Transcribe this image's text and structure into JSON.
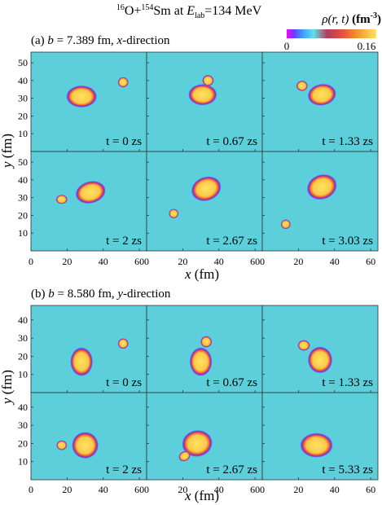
{
  "title": {
    "pre": "16",
    "o": "O+",
    "sm_pre": "154",
    "sm": "Sm at ",
    "e": "E",
    "lab": "lab",
    "rest": "=134 MeV"
  },
  "colorbar": {
    "label_rho": "ρ(r, t)",
    "label_unit": "(fm",
    "label_exp": "-3",
    "label_close": ")",
    "min_label": "0",
    "max_label": "0.16",
    "min": 0,
    "max": 0.16,
    "stops": [
      "#ff00ff",
      "#6a3cff",
      "#3aa0ff",
      "#5fe0e8",
      "#c23a6e",
      "#e8503a",
      "#f39a2e",
      "#ffe45e"
    ]
  },
  "background_color": "#5ccfdb",
  "panel_sets": [
    {
      "id": "a",
      "label": "(a) b = 7.389 fm, x-direction",
      "label_parts": {
        "pre": "(a) ",
        "b": "b",
        "mid": " = 7.389 fm, ",
        "dir": "x",
        "post": "-direction"
      },
      "xlabel": "x (fm)",
      "ylabel": "y (fm)",
      "xlim": [
        0,
        64
      ],
      "ylim": [
        0,
        56
      ],
      "xticks": [
        0,
        20,
        40,
        60
      ],
      "yticks": [
        10,
        20,
        30,
        40,
        50
      ],
      "panels": [
        {
          "time_label": "t = 0 zs",
          "blobs": [
            {
              "cx": 28,
              "cy": 31,
              "rx": 7.5,
              "ry": 5.5,
              "rot": 0
            },
            {
              "cx": 51,
              "cy": 39,
              "rx": 2.6,
              "ry": 2.6,
              "rot": 0
            }
          ]
        },
        {
          "time_label": "t = 0.67 zs",
          "blobs": [
            {
              "cx": 31,
              "cy": 32,
              "rx": 7,
              "ry": 5.3,
              "rot": 0
            },
            {
              "cx": 34,
              "cy": 40,
              "rx": 2.8,
              "ry": 2.8,
              "rot": 0
            }
          ]
        },
        {
          "time_label": "t = 1.33 zs",
          "blobs": [
            {
              "cx": 33,
              "cy": 32,
              "rx": 7,
              "ry": 5.4,
              "rot": -10
            },
            {
              "cx": 22,
              "cy": 37,
              "rx": 2.8,
              "ry": 2.6,
              "rot": 0
            }
          ]
        },
        {
          "time_label": "t = 2 zs",
          "blobs": [
            {
              "cx": 33,
              "cy": 33,
              "rx": 7.5,
              "ry": 5.5,
              "rot": -15
            },
            {
              "cx": 17,
              "cy": 29,
              "rx": 2.8,
              "ry": 2.3,
              "rot": 0
            }
          ]
        },
        {
          "time_label": "t = 2.67 zs",
          "blobs": [
            {
              "cx": 33,
              "cy": 35,
              "rx": 7.5,
              "ry": 6,
              "rot": -20
            },
            {
              "cx": 15,
              "cy": 21,
              "rx": 2.4,
              "ry": 2.4,
              "rot": 0
            }
          ]
        },
        {
          "time_label": "t = 3.03 zs",
          "blobs": [
            {
              "cx": 33,
              "cy": 36,
              "rx": 7.5,
              "ry": 6.2,
              "rot": -20
            },
            {
              "cx": 13,
              "cy": 15,
              "rx": 2.4,
              "ry": 2.4,
              "rot": 0
            }
          ]
        }
      ]
    },
    {
      "id": "b",
      "label": "(b) b = 8.580 fm, y-direction",
      "label_parts": {
        "pre": "(b) ",
        "b": "b",
        "mid": " = 8.580 fm, ",
        "dir": "y",
        "post": "-direction"
      },
      "xlabel": "x (fm)",
      "ylabel": "y (fm)",
      "xlim": [
        0,
        64
      ],
      "ylim": [
        0,
        48
      ],
      "xticks": [
        0,
        20,
        40,
        60
      ],
      "yticks": [
        10,
        20,
        30,
        40
      ],
      "panels": [
        {
          "time_label": "t = 0 zs",
          "blobs": [
            {
              "cx": 28,
              "cy": 17,
              "rx": 5.5,
              "ry": 7,
              "rot": 0
            },
            {
              "cx": 51,
              "cy": 27,
              "rx": 2.6,
              "ry": 2.6,
              "rot": 0
            }
          ]
        },
        {
          "time_label": "t = 0.67 zs",
          "blobs": [
            {
              "cx": 30,
              "cy": 17,
              "rx": 5.5,
              "ry": 7,
              "rot": 0
            },
            {
              "cx": 33,
              "cy": 28,
              "rx": 2.8,
              "ry": 2.8,
              "rot": 0
            }
          ]
        },
        {
          "time_label": "t = 1.33 zs",
          "blobs": [
            {
              "cx": 32,
              "cy": 18,
              "rx": 6,
              "ry": 6.5,
              "rot": 0
            },
            {
              "cx": 23,
              "cy": 26,
              "rx": 3,
              "ry": 2.6,
              "rot": 0
            }
          ]
        },
        {
          "time_label": "t = 2 zs",
          "blobs": [
            {
              "cx": 30,
              "cy": 19,
              "rx": 6.5,
              "ry": 6.5,
              "rot": 0
            },
            {
              "cx": 17,
              "cy": 19,
              "rx": 2.6,
              "ry": 2.4,
              "rot": 0
            }
          ]
        },
        {
          "time_label": "t = 2.67 zs",
          "blobs": [
            {
              "cx": 28,
              "cy": 20,
              "rx": 7.5,
              "ry": 6.5,
              "rot": -10
            },
            {
              "cx": 21,
              "cy": 13,
              "rx": 3,
              "ry": 2.4,
              "rot": -30
            }
          ]
        },
        {
          "time_label": "t = 5.33 zs",
          "blobs": [
            {
              "cx": 30,
              "cy": 19,
              "rx": 8,
              "ry": 6,
              "rot": 0
            }
          ]
        }
      ]
    }
  ]
}
